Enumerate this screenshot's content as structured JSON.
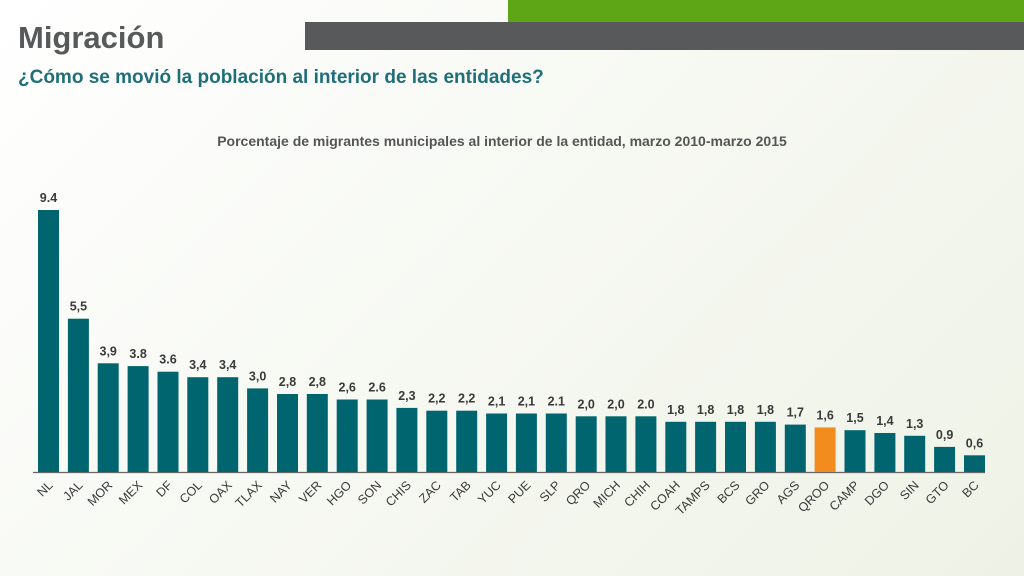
{
  "header": {
    "title": "Migración",
    "subtitle": "¿Cómo se movió la población al interior de las entidades?"
  },
  "colors": {
    "bar": "#01656f",
    "highlight": "#f28c1e",
    "dark_band": "#58595b",
    "green_band": "#5fa616"
  },
  "chart_data": {
    "type": "bar",
    "title": "Porcentaje de migrantes municipales al interior de la entidad, marzo 2010-marzo 2015",
    "xlabel": "",
    "ylabel": "",
    "ylim": [
      0,
      9.4
    ],
    "grid": false,
    "highlight_category": "QROO",
    "categories": [
      "NL",
      "JAL",
      "MOR",
      "MEX",
      "DF",
      "COL",
      "OAX",
      "TLAX",
      "NAY",
      "VER",
      "HGO",
      "SON",
      "CHIS",
      "ZAC",
      "TAB",
      "YUC",
      "PUE",
      "SLP",
      "QRO",
      "MICH",
      "CHIH",
      "COAH",
      "TAMPS",
      "BCS",
      "GRO",
      "AGS",
      "QROO",
      "CAMP",
      "DGO",
      "SIN",
      "GTO",
      "BC"
    ],
    "values": [
      9.4,
      5.5,
      3.9,
      3.8,
      3.6,
      3.4,
      3.4,
      3.0,
      2.8,
      2.8,
      2.6,
      2.6,
      2.3,
      2.2,
      2.2,
      2.1,
      2.1,
      2.1,
      2.0,
      2.0,
      2.0,
      1.8,
      1.8,
      1.8,
      1.8,
      1.7,
      1.6,
      1.5,
      1.4,
      1.3,
      0.9,
      0.6
    ],
    "data_labels": [
      "9.4",
      "5,5",
      "3,9",
      "3.8",
      "3.6",
      "3,4",
      "3,4",
      "3,0",
      "2,8",
      "2,8",
      "2,6",
      "2.6",
      "2,3",
      "2,2",
      "2,2",
      "2,1",
      "2,1",
      "2.1",
      "2,0",
      "2,0",
      "2.0",
      "1,8",
      "1,8",
      "1,8",
      "1,8",
      "1,7",
      "1,6",
      "1,5",
      "1,4",
      "1,3",
      "0,9",
      "0,6"
    ]
  }
}
